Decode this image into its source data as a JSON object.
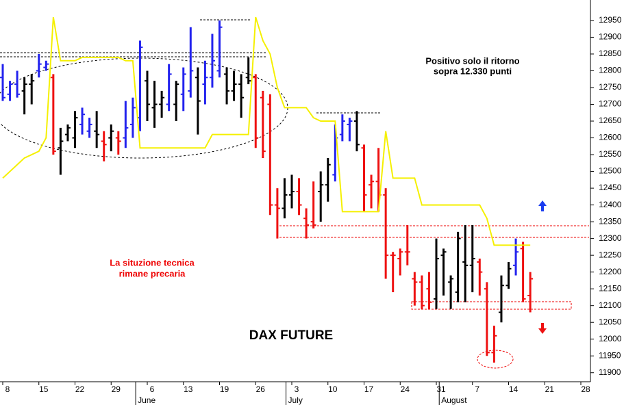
{
  "chart_data": {
    "type": "ohlc",
    "title": "DAX FUTURE",
    "annotations": [
      "Positivo solo il ritorno",
      "sopra 12.330 punti",
      "La situzione tecnica",
      "rimane precaria"
    ],
    "categories": [
      "8",
      null,
      null,
      null,
      null,
      "15",
      null,
      null,
      null,
      null,
      "22",
      null,
      null,
      null,
      null,
      "29",
      null,
      null,
      null,
      null,
      "6",
      null,
      null,
      null,
      null,
      "13",
      null,
      null,
      null,
      null,
      "19",
      null,
      null,
      null,
      null,
      "26",
      null,
      null,
      null,
      null,
      "3",
      null,
      null,
      null,
      null,
      "10",
      null,
      null,
      null,
      null,
      "17",
      null,
      null,
      null,
      null,
      "24",
      null,
      null,
      null,
      null,
      "31",
      null,
      null,
      null,
      null,
      "7",
      null,
      null,
      null,
      null,
      "14",
      null,
      null,
      null,
      null,
      "21",
      null,
      null,
      null,
      null,
      "28"
    ],
    "months": [
      {
        "value": 18.4,
        "label": "June"
      },
      {
        "value": 39.2,
        "label": "July"
      },
      {
        "value": 60.4,
        "label": "August"
      }
    ],
    "open": [
      12780,
      12730,
      12760,
      12740,
      12760,
      12800,
      12810,
      12780,
      12570,
      12610,
      12600,
      12640,
      12620,
      12620,
      12590,
      12600,
      12600,
      12600,
      12640,
      12660,
      12770,
      12690,
      12700,
      12700,
      12700,
      12730,
      12740,
      12780,
      12760,
      12780,
      12800,
      12790,
      12740,
      12760,
      12780,
      12780,
      12720,
      12700,
      12400,
      12390,
      12430,
      12440,
      12360,
      12350,
      12440,
      12460,
      12490,
      12610,
      12640,
      12650,
      12570,
      12460,
      12470,
      12430,
      12250,
      12240,
      12260,
      12180,
      12170,
      12150,
      12120,
      12250,
      12170,
      12140,
      12230,
      12220,
      12230,
      12150,
      11960,
      12080,
      12160,
      12220,
      12270,
      12130,
      null,
      null,
      null,
      null,
      null,
      null,
      null
    ],
    "high": [
      12820,
      12770,
      12800,
      12780,
      12790,
      12850,
      12830,
      12790,
      12630,
      12640,
      12680,
      12690,
      12660,
      12680,
      12620,
      12640,
      12620,
      12710,
      12720,
      12890,
      12800,
      12770,
      12740,
      12820,
      12770,
      12810,
      12930,
      12810,
      12830,
      12910,
      12950,
      12810,
      12800,
      12790,
      12840,
      12790,
      12740,
      12730,
      12450,
      12480,
      12490,
      12480,
      12390,
      12470,
      12500,
      12540,
      12640,
      12670,
      12660,
      12680,
      12580,
      12490,
      12570,
      12450,
      12260,
      12270,
      12340,
      12200,
      12190,
      12200,
      12300,
      12270,
      12190,
      12320,
      12340,
      12340,
      12240,
      12170,
      12040,
      12190,
      12230,
      12300,
      12290,
      12200,
      null,
      null,
      null,
      null,
      null,
      null,
      null
    ],
    "low": [
      12710,
      12710,
      12720,
      12670,
      12700,
      12780,
      12800,
      12550,
      12490,
      12590,
      12570,
      12610,
      12600,
      12570,
      12530,
      12560,
      12550,
      12570,
      12600,
      12620,
      12650,
      12630,
      12660,
      12680,
      12650,
      12680,
      12720,
      12610,
      12700,
      12750,
      12780,
      12700,
      12710,
      12660,
      12760,
      12570,
      12540,
      12370,
      12300,
      12360,
      12390,
      12370,
      12300,
      12330,
      12350,
      12410,
      12470,
      12590,
      12590,
      12560,
      12380,
      12390,
      12380,
      12180,
      12140,
      12190,
      12220,
      12100,
      12090,
      12090,
      12090,
      12130,
      12090,
      12110,
      12110,
      12140,
      12130,
      11950,
      11930,
      12050,
      12150,
      12190,
      12110,
      12080,
      null,
      null,
      null,
      null,
      null,
      null,
      null
    ],
    "close": [
      12720,
      12760,
      12730,
      12760,
      12770,
      12820,
      12820,
      12560,
      12590,
      12630,
      12660,
      12670,
      12640,
      12610,
      12580,
      12620,
      12590,
      12630,
      12690,
      12870,
      12700,
      12700,
      12720,
      12790,
      12760,
      12790,
      12800,
      12710,
      12780,
      12830,
      12930,
      12740,
      12760,
      12720,
      12770,
      12600,
      12560,
      12400,
      12390,
      12430,
      12440,
      12400,
      12340,
      12340,
      12460,
      12520,
      12600,
      12650,
      12650,
      12580,
      12430,
      12470,
      12430,
      12250,
      12250,
      12260,
      12260,
      12170,
      12100,
      12110,
      12240,
      12260,
      12180,
      12300,
      12220,
      12240,
      12200,
      11960,
      12010,
      12160,
      12210,
      12260,
      12120,
      12180,
      null,
      null,
      null,
      null,
      null,
      null,
      null
    ],
    "palette": {
      "b": "#2222ee",
      "k": "#000000",
      "r": "#ee1111"
    },
    "bar_colors": [
      "b",
      "b",
      "b",
      "k",
      "k",
      "b",
      "b",
      "r",
      "k",
      "k",
      "k",
      "b",
      "b",
      "k",
      "r",
      "k",
      "r",
      "b",
      "b",
      "b",
      "k",
      "k",
      "k",
      "b",
      "k",
      "b",
      "b",
      "k",
      "b",
      "b",
      "b",
      "k",
      "k",
      "k",
      "k",
      "r",
      "r",
      "r",
      "r",
      "k",
      "k",
      "r",
      "r",
      "r",
      "k",
      "k",
      "b",
      "b",
      "b",
      "k",
      "r",
      "r",
      "r",
      "r",
      "r",
      "r",
      "r",
      "r",
      "r",
      "r",
      "k",
      "k",
      "k",
      "k",
      "k",
      "k",
      "r",
      "r",
      "r",
      "k",
      "k",
      "b",
      "r",
      "r",
      null,
      null,
      null,
      null,
      null,
      null,
      null
    ],
    "line": {
      "color": "#f5f000",
      "values": [
        12480,
        12500,
        12520,
        12540,
        12550,
        12560,
        12600,
        12960,
        12830,
        12830,
        12830,
        12840,
        12840,
        12840,
        12840,
        12840,
        12840,
        12830,
        12830,
        12570,
        12570,
        12570,
        12570,
        12570,
        12570,
        12570,
        12570,
        12570,
        12570,
        12610,
        12610,
        12610,
        12610,
        12610,
        12610,
        12960,
        12890,
        12850,
        12750,
        12690,
        12690,
        12690,
        12690,
        12660,
        12650,
        12650,
        12650,
        12380,
        12380,
        12380,
        12380,
        12380,
        12380,
        12620,
        12480,
        12480,
        12480,
        12480,
        12400,
        12400,
        12400,
        12400,
        12400,
        12400,
        12400,
        12400,
        12400,
        12360,
        12280,
        12280,
        12280,
        12280,
        12280,
        12280,
        null,
        null,
        null,
        null,
        null,
        null,
        null
      ]
    },
    "ylim": [
      11873,
      13011
    ],
    "yticks": [
      11900,
      11950,
      12000,
      12050,
      12100,
      12150,
      12200,
      12250,
      12300,
      12350,
      12400,
      12450,
      12500,
      12550,
      12600,
      12650,
      12700,
      12750,
      12800,
      12850,
      12900,
      12950
    ],
    "grid": false
  }
}
